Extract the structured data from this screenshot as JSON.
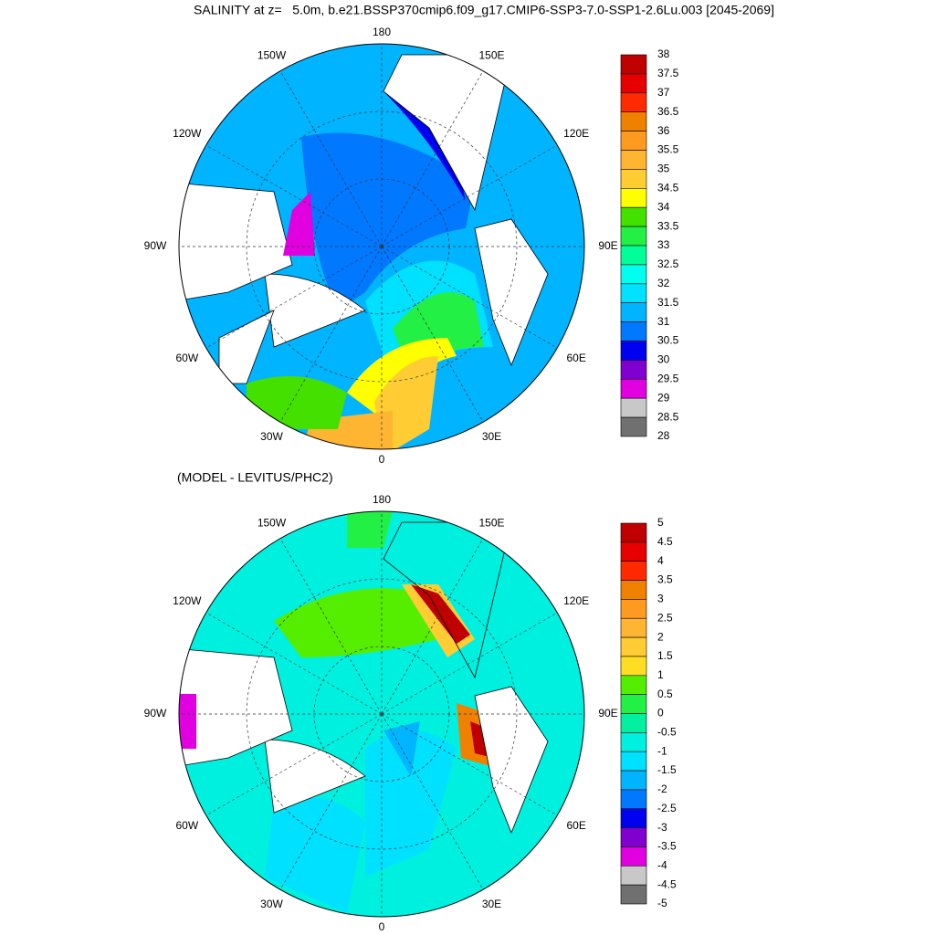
{
  "panels": [
    {
      "heading": "SALINITY at z=   5.0m, b.e21.BSSP370cmip6.f09_g17.CMIP6-SSP3-7.0-SSP1-2.6Lu.003 [2045-2069]",
      "lon_labels": [
        "180",
        "150E",
        "120E",
        "90E",
        "60E",
        "30E",
        "0",
        "30W",
        "60W",
        "90W",
        "120W",
        "150W"
      ],
      "colorbar": {
        "levels": [
          38,
          37.5,
          37,
          36.5,
          36,
          35.5,
          35,
          34.5,
          34,
          33.5,
          33,
          32.5,
          32,
          31.5,
          31,
          30.5,
          30,
          29.5,
          29,
          28.5,
          28
        ],
        "colors": [
          "#c00000",
          "#e60000",
          "#ff2a00",
          "#f08000",
          "#ff9a20",
          "#ffb432",
          "#ffcc33",
          "#ffff00",
          "#44e000",
          "#22f044",
          "#00ff99",
          "#00ffee",
          "#00e0ff",
          "#00b4ff",
          "#0078ff",
          "#0000f0",
          "#8000d0",
          "#e000e0",
          "#c8c8c8",
          "#707070"
        ]
      }
    },
    {
      "heading": "(MODEL - LEVITUS/PHC2)",
      "lon_labels": [
        "180",
        "150E",
        "120E",
        "90E",
        "60E",
        "30E",
        "0",
        "30W",
        "60W",
        "90W",
        "120W",
        "150W"
      ],
      "colorbar": {
        "levels": [
          5,
          4.5,
          4,
          3.5,
          3,
          2.5,
          2,
          1.5,
          1,
          0.5,
          0,
          -0.5,
          -1,
          -1.5,
          -2,
          -2.5,
          -3,
          -3.5,
          -4,
          -4.5,
          -5
        ],
        "colors": [
          "#c00000",
          "#e60000",
          "#ff2a00",
          "#f08000",
          "#ff9a20",
          "#ffb432",
          "#ffcc33",
          "#ffdd22",
          "#55ee00",
          "#22f044",
          "#00f0a0",
          "#00f0e0",
          "#00e0ff",
          "#00b4ff",
          "#0078ff",
          "#0000f0",
          "#8000d0",
          "#e000e0",
          "#c8c8c8",
          "#707070"
        ]
      }
    }
  ]
}
